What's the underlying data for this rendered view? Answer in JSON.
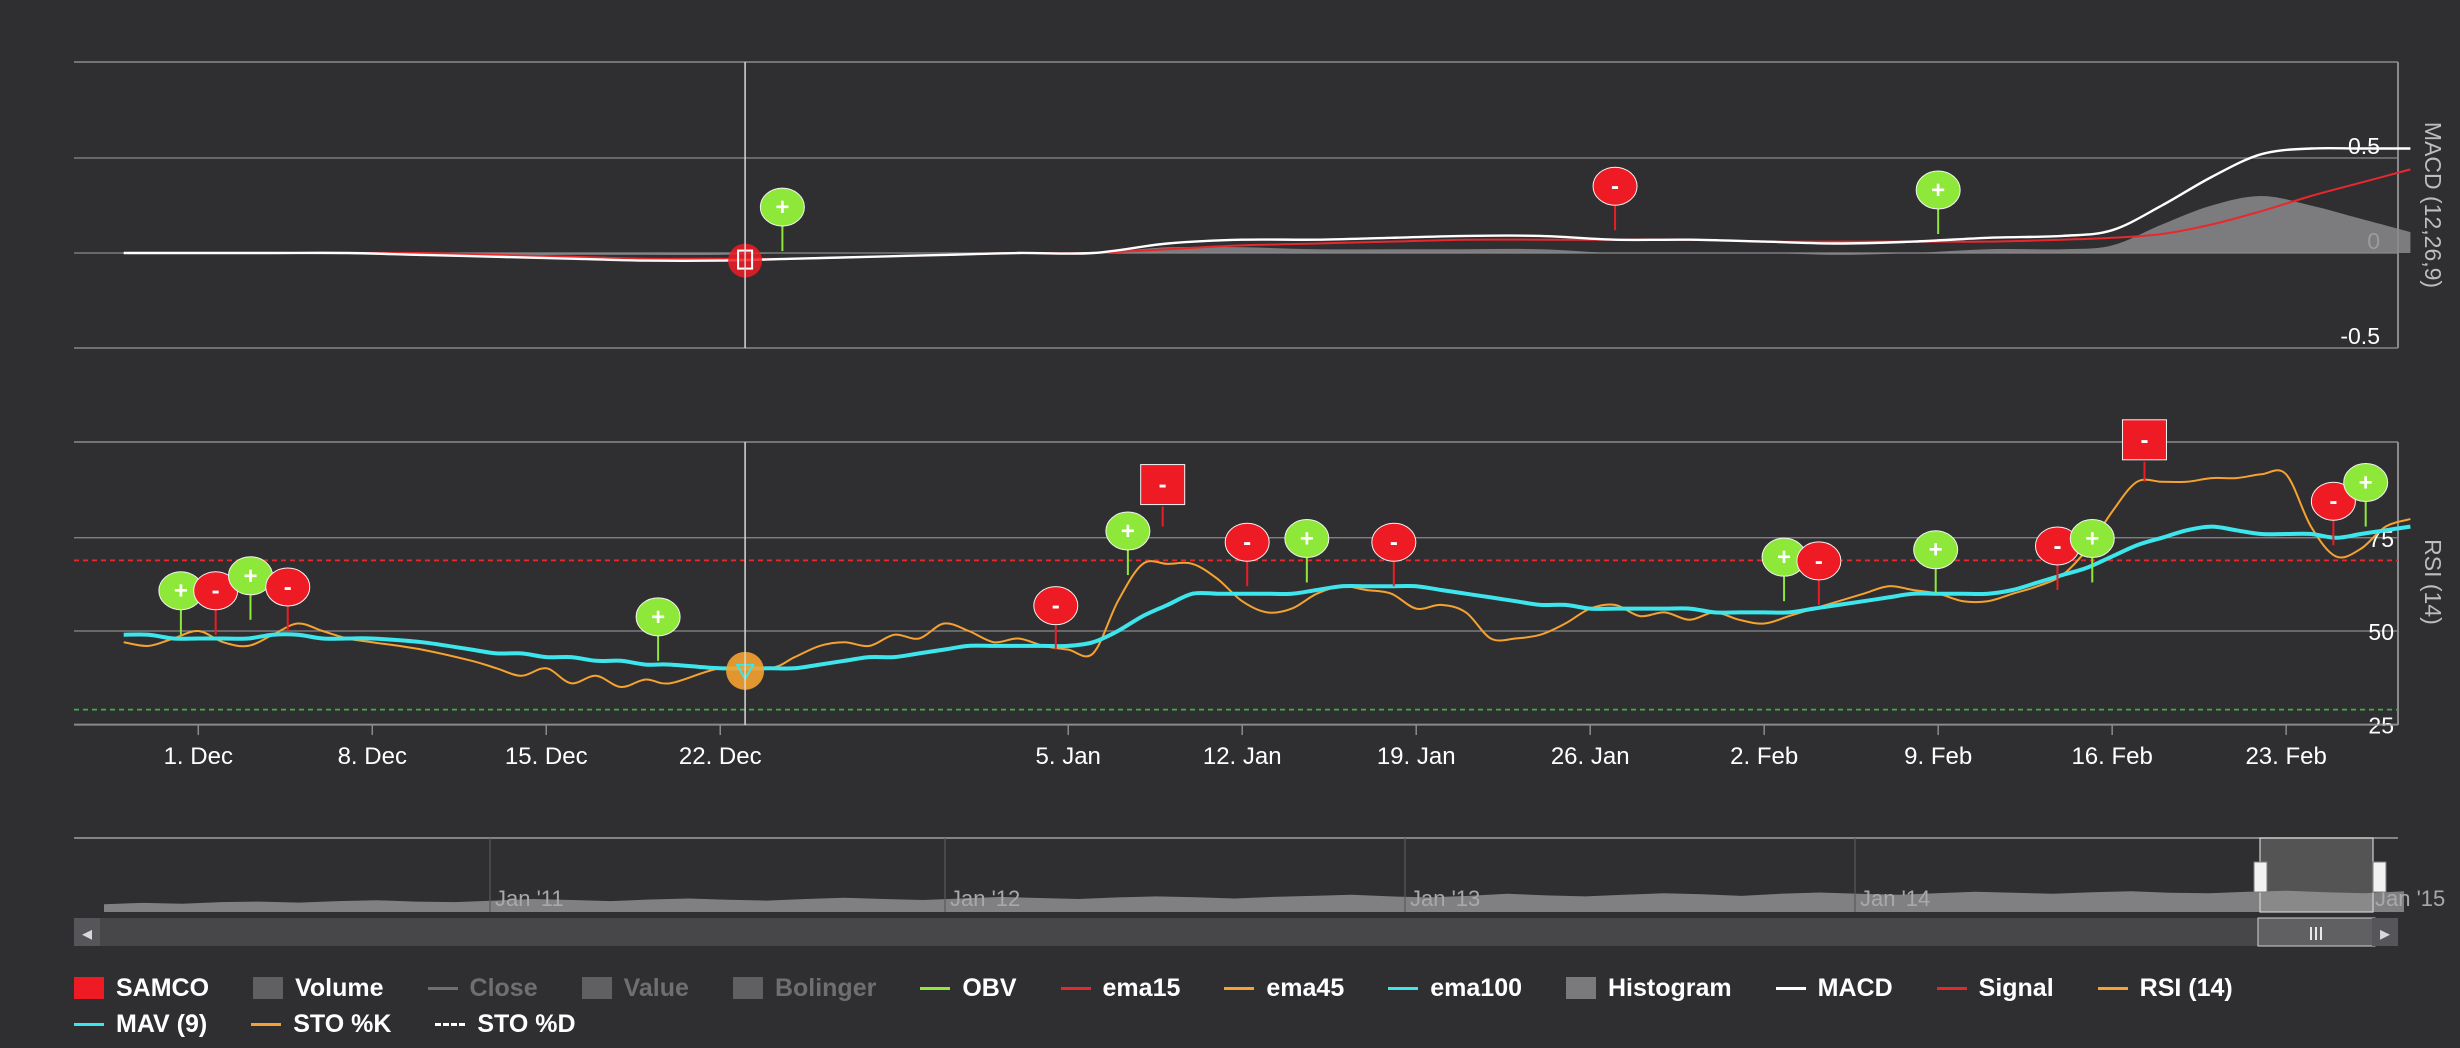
{
  "colors": {
    "bg": "#2f2f31",
    "grid": "#8a8a8d",
    "text": "#ffffff",
    "macd": "#ffffff",
    "signal": "#e8282d",
    "histogram": "#8a8a8c",
    "rsi": "#f5a230",
    "mav": "#3de6ec",
    "buy": "#8ee83a",
    "sell": "#ef1b24",
    "overbought": "#e8282d",
    "oversold": "#3fae49"
  },
  "chart_data": [
    {
      "type": "area",
      "name_label": "MACD (12,26,9)",
      "y_ticks": [
        "0.5",
        "0",
        "-0.5"
      ],
      "ylim": [
        -0.5,
        0.5
      ],
      "x_days": [
        0,
        3,
        6,
        9,
        12,
        15,
        18,
        21,
        24,
        27,
        30,
        33,
        36,
        39,
        42,
        45,
        48,
        51,
        54,
        57,
        60,
        63,
        66,
        69,
        72,
        75,
        78,
        80,
        82,
        84,
        86,
        88,
        90,
        92
      ],
      "series": [
        {
          "name": "MACD",
          "values": [
            0,
            0,
            0,
            0,
            -0.01,
            -0.02,
            -0.03,
            -0.04,
            -0.04,
            -0.03,
            -0.02,
            -0.01,
            0,
            0,
            0.05,
            0.07,
            0.07,
            0.08,
            0.09,
            0.09,
            0.07,
            0.07,
            0.06,
            0.05,
            0.06,
            0.08,
            0.09,
            0.12,
            0.25,
            0.4,
            0.52,
            0.55,
            0.55,
            0.55
          ]
        },
        {
          "name": "Signal",
          "values": [
            0,
            0,
            0,
            0,
            0,
            -0.01,
            -0.02,
            -0.03,
            -0.03,
            -0.03,
            -0.02,
            -0.01,
            0,
            0,
            0.02,
            0.04,
            0.05,
            0.06,
            0.07,
            0.07,
            0.07,
            0.07,
            0.06,
            0.06,
            0.06,
            0.06,
            0.07,
            0.08,
            0.1,
            0.15,
            0.22,
            0.3,
            0.37,
            0.44
          ]
        },
        {
          "name": "Histogram",
          "values": [
            0,
            0,
            0,
            0,
            0,
            -0.01,
            -0.01,
            -0.01,
            -0.01,
            0,
            0,
            0,
            0,
            0,
            0.03,
            0.03,
            0.02,
            0.02,
            0.02,
            0.02,
            0,
            0,
            0,
            -0.01,
            0,
            0.02,
            0.02,
            0.04,
            0.15,
            0.25,
            0.3,
            0.25,
            0.18,
            0.11
          ]
        }
      ],
      "flags": [
        {
          "day": 26.5,
          "value": 0.01,
          "kind": "buy",
          "label": "+"
        },
        {
          "day": 60,
          "value": 0.12,
          "kind": "sell",
          "label": "-"
        },
        {
          "day": 73,
          "value": 0.1,
          "kind": "buy",
          "label": "+"
        }
      ]
    },
    {
      "type": "line",
      "name_label": "RSI (14)",
      "y_ticks": [
        "75",
        "50",
        "25"
      ],
      "ylim": [
        25,
        100
      ],
      "overbought": 70,
      "oversold": 30,
      "x_days": [
        0,
        1,
        2,
        3,
        4,
        5,
        6,
        7,
        8,
        9,
        10,
        12,
        14,
        15,
        16,
        17,
        18,
        19,
        20,
        21,
        22,
        24,
        26,
        27,
        28,
        29,
        30,
        31,
        32,
        33,
        34,
        35,
        36,
        37,
        38,
        39,
        40,
        41,
        42,
        43,
        44,
        45,
        46,
        47,
        48,
        49,
        50,
        51,
        52,
        53,
        54,
        55,
        56,
        57,
        58,
        59,
        60,
        61,
        62,
        63,
        64,
        65,
        66,
        67,
        68,
        69,
        70,
        71,
        72,
        73,
        74,
        75,
        76,
        77,
        78,
        79,
        80,
        81,
        82,
        83,
        84,
        85,
        86,
        87,
        88,
        89,
        90,
        91,
        92
      ],
      "series": [
        {
          "name": "RSI (14)",
          "values": [
            47,
            46,
            48,
            50,
            47,
            46,
            49,
            52,
            50,
            48,
            47,
            45,
            42,
            40,
            38,
            40,
            36,
            38,
            35,
            37,
            36,
            40,
            40,
            43,
            46,
            47,
            46,
            49,
            48,
            52,
            50,
            47,
            48,
            46,
            45,
            44,
            58,
            68,
            68,
            68,
            64,
            58,
            55,
            56,
            60,
            62,
            61,
            60,
            56,
            57,
            55,
            48,
            48,
            49,
            52,
            56,
            57,
            54,
            55,
            53,
            55,
            53,
            52,
            54,
            56,
            58,
            60,
            62,
            61,
            60,
            58,
            58,
            60,
            62,
            65,
            72,
            82,
            90,
            90,
            90,
            91,
            91,
            92,
            92,
            78,
            70,
            72,
            78,
            80
          ]
        },
        {
          "name": "MAV (9)",
          "values": [
            49,
            49,
            48,
            48,
            48,
            48,
            49,
            49,
            48,
            48,
            48,
            47,
            45,
            44,
            44,
            43,
            43,
            42,
            42,
            41,
            41,
            40,
            40,
            40,
            41,
            42,
            43,
            43,
            44,
            45,
            46,
            46,
            46,
            46,
            46,
            47,
            50,
            54,
            57,
            60,
            60,
            60,
            60,
            60,
            61,
            62,
            62,
            62,
            62,
            61,
            60,
            59,
            58,
            57,
            57,
            56,
            56,
            56,
            56,
            56,
            55,
            55,
            55,
            55,
            56,
            57,
            58,
            59,
            60,
            60,
            60,
            60,
            61,
            63,
            65,
            67,
            70,
            73,
            75,
            77,
            78,
            77,
            76,
            76,
            76,
            75,
            76,
            77,
            78
          ]
        }
      ],
      "flags": [
        {
          "day": 2.3,
          "value": 49,
          "kind": "buy",
          "label": "+"
        },
        {
          "day": 3.7,
          "value": 49,
          "kind": "sell",
          "label": "-"
        },
        {
          "day": 5.1,
          "value": 53,
          "kind": "buy",
          "label": "+"
        },
        {
          "day": 6.6,
          "value": 50,
          "kind": "sell",
          "label": "-"
        },
        {
          "day": 21.5,
          "value": 42,
          "kind": "buy",
          "label": "+"
        },
        {
          "day": 37.5,
          "value": 45,
          "kind": "sell",
          "label": "-"
        },
        {
          "day": 40.4,
          "value": 65,
          "kind": "buy",
          "label": "+"
        },
        {
          "day": 41.8,
          "value": 78,
          "kind": "sell",
          "label": "-"
        },
        {
          "day": 45.2,
          "value": 62,
          "kind": "sell",
          "label": "-"
        },
        {
          "day": 47.6,
          "value": 63,
          "kind": "buy",
          "label": "+"
        },
        {
          "day": 51.1,
          "value": 62,
          "kind": "sell",
          "label": "-"
        },
        {
          "day": 66.8,
          "value": 58,
          "kind": "buy",
          "label": "+"
        },
        {
          "day": 68.2,
          "value": 57,
          "kind": "sell",
          "label": "-"
        },
        {
          "day": 72.9,
          "value": 60,
          "kind": "buy",
          "label": "+"
        },
        {
          "day": 77.8,
          "value": 61,
          "kind": "sell",
          "label": "-"
        },
        {
          "day": 79.2,
          "value": 63,
          "kind": "buy",
          "label": "+"
        },
        {
          "day": 81.3,
          "value": 90,
          "kind": "sell",
          "label": "-"
        },
        {
          "day": 88.9,
          "value": 73,
          "kind": "sell",
          "label": "-"
        },
        {
          "day": 90.2,
          "value": 78,
          "kind": "buy",
          "label": "+"
        }
      ],
      "event_marker": {
        "day": 25,
        "value": 42
      }
    }
  ],
  "crosshair_day": 25,
  "x_axis": {
    "day_range": [
      -2,
      91.5
    ],
    "ticks": [
      {
        "day": 3,
        "label": "1. Dec"
      },
      {
        "day": 10,
        "label": "8. Dec"
      },
      {
        "day": 17,
        "label": "15. Dec"
      },
      {
        "day": 24,
        "label": "22. Dec"
      },
      {
        "day": 38,
        "label": "5. Jan"
      },
      {
        "day": 45,
        "label": "12. Jan"
      },
      {
        "day": 52,
        "label": "19. Jan"
      },
      {
        "day": 59,
        "label": "26. Jan"
      },
      {
        "day": 66,
        "label": "2. Feb"
      },
      {
        "day": 73,
        "label": "9. Feb"
      },
      {
        "day": 80,
        "label": "16. Feb"
      },
      {
        "day": 87,
        "label": "23. Feb"
      }
    ]
  },
  "navigator": {
    "labels": [
      "Jan '11",
      "Jan '12",
      "Jan '13",
      "Jan '14"
    ],
    "edge_label": "Jan '15",
    "volume_profile": [
      0.3,
      0.35,
      0.32,
      0.38,
      0.4,
      0.36,
      0.42,
      0.45,
      0.4,
      0.38,
      0.44,
      0.5,
      0.46,
      0.42,
      0.48,
      0.52,
      0.47,
      0.44,
      0.5,
      0.55,
      0.5,
      0.46,
      0.52,
      0.58,
      0.54,
      0.5,
      0.56,
      0.6,
      0.57,
      0.52,
      0.58,
      0.62,
      0.66,
      0.6,
      0.56,
      0.62,
      0.7,
      0.64,
      0.6,
      0.66,
      0.72,
      0.68,
      0.62,
      0.7,
      0.75,
      0.7,
      0.66,
      0.72,
      0.78,
      0.74,
      0.7,
      0.76,
      0.8,
      0.74,
      0.72,
      0.78,
      0.82,
      0.76,
      0.72,
      0.8
    ],
    "left_arrow": "◂",
    "right_arrow": "▸",
    "thumb_grip": "III"
  },
  "legend": [
    {
      "label": "SAMCO",
      "symbol": "box",
      "color": "#ef1b24",
      "dim": false
    },
    {
      "label": "Volume",
      "symbol": "box",
      "color": "#606063",
      "dim": false
    },
    {
      "label": "Close",
      "symbol": "line",
      "color": "#6f6f72",
      "dim": true
    },
    {
      "label": "Value",
      "symbol": "box",
      "color": "#606063",
      "dim": true
    },
    {
      "label": "Bolinger",
      "symbol": "box",
      "color": "#606063",
      "dim": true
    },
    {
      "label": "OBV",
      "symbol": "line",
      "color": "#8ee83a",
      "dim": false
    },
    {
      "label": "ema15",
      "symbol": "line",
      "color": "#e8282d",
      "dim": false
    },
    {
      "label": "ema45",
      "symbol": "line",
      "color": "#f5a230",
      "dim": false
    },
    {
      "label": "ema100",
      "symbol": "line",
      "color": "#3de6ec",
      "dim": false
    },
    {
      "label": "Histogram",
      "symbol": "box",
      "color": "#7a7a7c",
      "dim": false
    },
    {
      "label": "MACD",
      "symbol": "line",
      "color": "#ffffff",
      "dim": false
    },
    {
      "label": "Signal",
      "symbol": "line",
      "color": "#e8282d",
      "dim": false
    },
    {
      "label": "RSI (14)",
      "symbol": "line",
      "color": "#f5a230",
      "dim": false
    },
    {
      "label": "MAV (9)",
      "symbol": "line",
      "color": "#3de6ec",
      "dim": false
    },
    {
      "label": "STO %K",
      "symbol": "line",
      "color": "#f5a230",
      "dim": false
    },
    {
      "label": "STO %D",
      "symbol": "dash",
      "color": "#ffffff",
      "dim": false
    }
  ]
}
